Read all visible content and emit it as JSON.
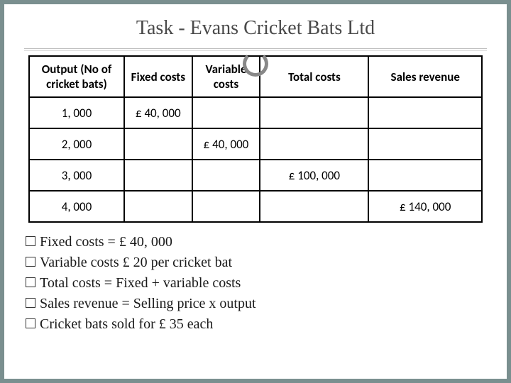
{
  "title": "Task - Evans Cricket Bats Ltd",
  "table": {
    "headers": {
      "output": "Output (No of cricket bats)",
      "fixed": "Fixed costs",
      "variable": "Variable costs",
      "total": "Total costs",
      "sales": "Sales revenue"
    },
    "rows": [
      {
        "output": "1, 000",
        "fixed": "£ 40, 000",
        "variable": "",
        "total": "",
        "sales": ""
      },
      {
        "output": "2, 000",
        "fixed": "",
        "variable": "£ 40, 000",
        "total": "",
        "sales": ""
      },
      {
        "output": "3, 000",
        "fixed": "",
        "variable": "",
        "total": "£ 100, 000",
        "sales": ""
      },
      {
        "output": "4, 000",
        "fixed": "",
        "variable": "",
        "total": "",
        "sales": "£ 140, 000"
      }
    ]
  },
  "bullets": [
    "Fixed costs = £ 40, 000",
    "Variable costs £ 20 per cricket bat",
    "Total costs = Fixed + variable costs",
    "Sales revenue = Selling price x output",
    "Cricket bats sold for £ 35 each"
  ],
  "colors": {
    "page_bg": "#7a8f8f",
    "slide_bg": "#ffffff",
    "border": "#000000",
    "title_color": "#4a4a4a",
    "rule_color": "#bfbfbf"
  }
}
